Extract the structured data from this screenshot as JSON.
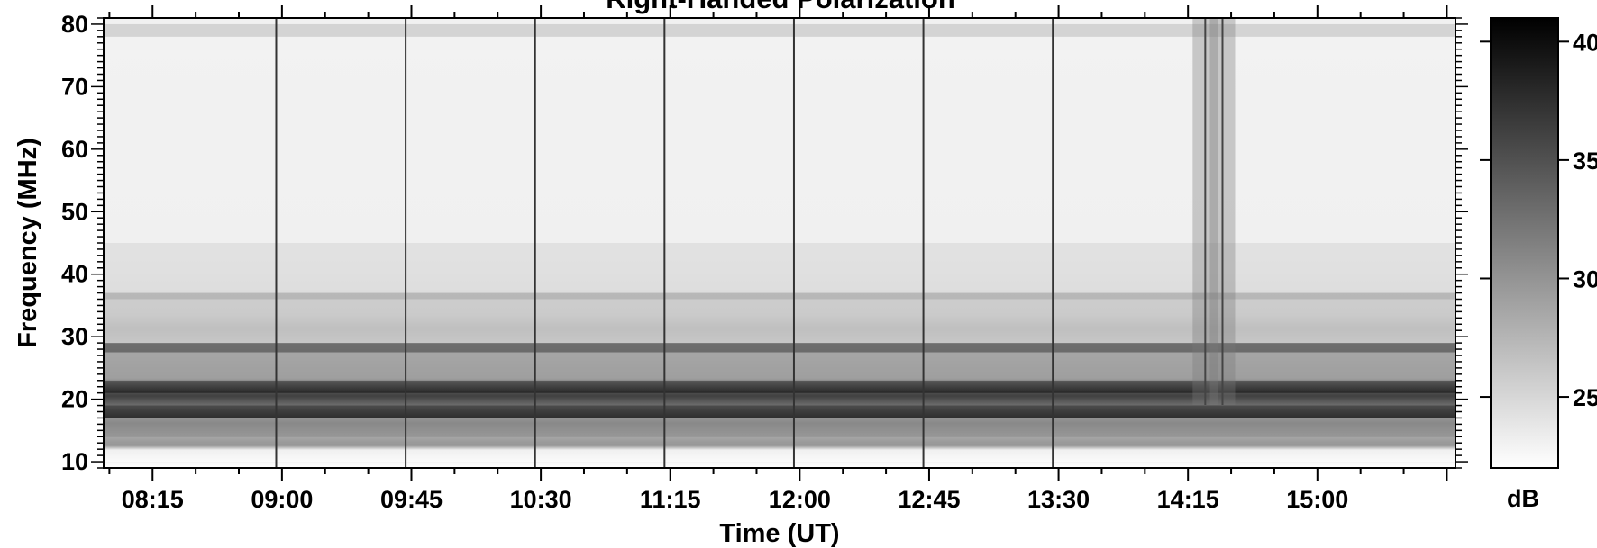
{
  "chart_data": {
    "type": "heatmap",
    "title": "Right-Handed Polarization",
    "xlabel": "Time (UT)",
    "ylabel": "Frequency (MHz)",
    "x_ticks": [
      "08:15",
      "09:00",
      "09:45",
      "10:30",
      "11:15",
      "12:00",
      "12:45",
      "13:30",
      "14:15",
      "15:00"
    ],
    "y_ticks": [
      10,
      20,
      30,
      40,
      50,
      60,
      70,
      80
    ],
    "xlim": [
      "07:58",
      "15:48"
    ],
    "ylim": [
      9,
      81
    ],
    "colorbar": {
      "label": "dB",
      "ticks": [
        25,
        30,
        35,
        40
      ],
      "range": [
        22,
        41
      ],
      "colormap": "gray_r"
    },
    "background_level_db": 23,
    "rfi_bands": [
      {
        "freq_mhz": [
          10,
          14
        ],
        "level_db": 22
      },
      {
        "freq_mhz": [
          14,
          17
        ],
        "level_db": 24
      },
      {
        "freq_mhz": [
          17,
          19
        ],
        "level_db": 38
      },
      {
        "freq_mhz": [
          19,
          21
        ],
        "level_db": 34
      },
      {
        "freq_mhz": [
          21,
          23
        ],
        "level_db": 39
      },
      {
        "freq_mhz": [
          23,
          27.5
        ],
        "level_db": 31
      },
      {
        "freq_mhz": [
          27.5,
          29
        ],
        "level_db": 39
      },
      {
        "freq_mhz": [
          29,
          36
        ],
        "level_db": 27
      },
      {
        "freq_mhz": [
          36,
          37
        ],
        "level_db": 30
      },
      {
        "freq_mhz": [
          37,
          45
        ],
        "level_db": 25
      },
      {
        "freq_mhz": [
          45,
          78
        ],
        "level_db": 23
      },
      {
        "freq_mhz": [
          78,
          80
        ],
        "level_db": 27
      }
    ],
    "vertical_artifacts_ut": [
      "08:58",
      "09:43",
      "10:28",
      "11:13",
      "11:58",
      "12:43",
      "13:28"
    ],
    "broadband_bursts_ut": [
      "14:21",
      "14:27"
    ]
  }
}
